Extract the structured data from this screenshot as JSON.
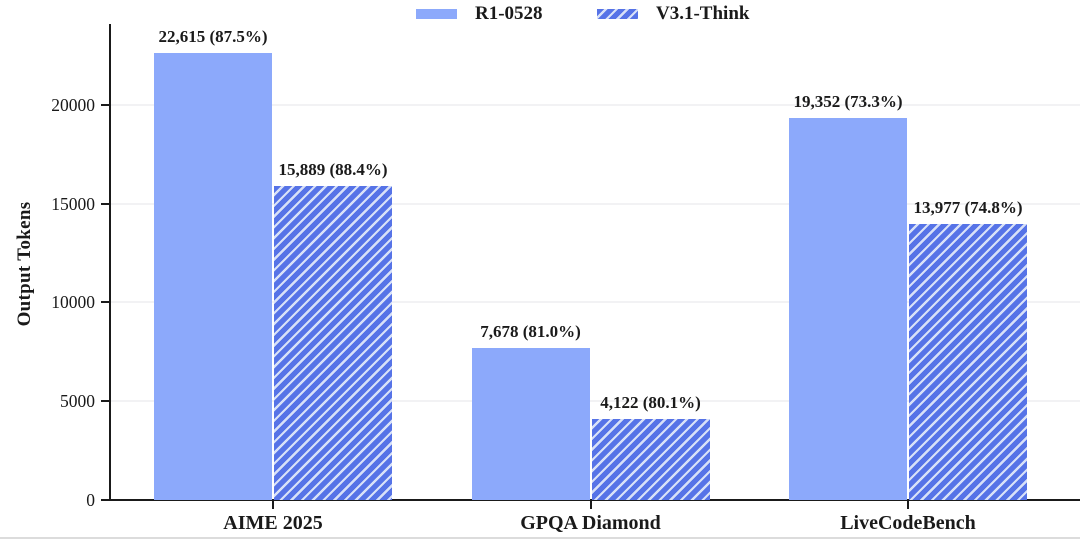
{
  "chart_data": {
    "type": "bar",
    "title": "",
    "xlabel": "",
    "ylabel": "Output Tokens",
    "categories": [
      "AIME 2025",
      "GPQA Diamond",
      "LiveCodeBench"
    ],
    "series": [
      {
        "name": "R1-0528",
        "style": "solid",
        "color": "#8CA9FB",
        "values": [
          22615,
          7678,
          19352
        ],
        "accuracy_pct": [
          87.5,
          81.0,
          73.3
        ],
        "bar_labels": [
          "22,615 (87.5%)",
          "7,678 (81.0%)",
          "19,352 (73.3%)"
        ]
      },
      {
        "name": "V3.1-Think",
        "style": "hatched",
        "color": "#5673E7",
        "hatch_color": "#D8E1F8",
        "values": [
          15889,
          4122,
          13977
        ],
        "accuracy_pct": [
          88.4,
          80.1,
          74.8
        ],
        "bar_labels": [
          "15,889 (88.4%)",
          "4,122 (80.1%)",
          "13,977 (74.8%)"
        ]
      }
    ],
    "y_ticks": [
      0,
      5000,
      10000,
      15000,
      20000
    ],
    "y_tick_labels": [
      "0",
      "5000",
      "10000",
      "15000",
      "20000"
    ],
    "ylim": [
      0,
      23900
    ],
    "grid": "horizontal-faint",
    "legend_position": "top-center",
    "axis_color": "#1a1a1a",
    "gridline_color": "#f2f2f4",
    "text_color": "#1a1a1a"
  }
}
